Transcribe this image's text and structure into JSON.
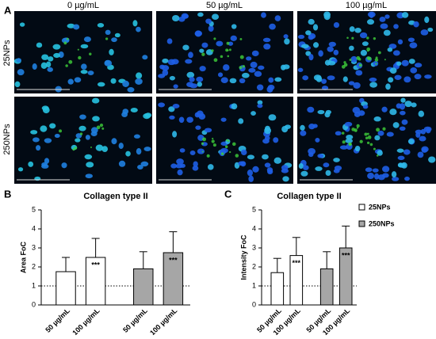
{
  "figure": {
    "panel_labels": [
      "A",
      "B",
      "C"
    ],
    "columns": [
      "0 µg/mL",
      "50 µg/mL",
      "100 µg/mL"
    ],
    "rows": [
      "25NPs",
      "250NPs"
    ]
  },
  "chart_data": [
    {
      "type": "bar",
      "title": "Collagen type II",
      "ylabel": "Area FoC",
      "categories": [
        "50 µg/mL",
        "100 µg/mL",
        "50 µg/mL",
        "100 µg/mL"
      ],
      "values": [
        1.75,
        2.5,
        1.9,
        2.75
      ],
      "errors": [
        0.75,
        1.0,
        0.9,
        1.1
      ],
      "colors": [
        "#ffffff",
        "#ffffff",
        "#a6a6a6",
        "#a6a6a6"
      ],
      "annotations": [
        {
          "index": 1,
          "text": "***"
        },
        {
          "index": 3,
          "text": "***"
        }
      ],
      "reference_line": 1,
      "ylim": [
        0,
        5
      ],
      "yticks": [
        0,
        1,
        2,
        3,
        4,
        5
      ]
    },
    {
      "type": "bar",
      "title": "Collagen type II",
      "ylabel": "Intensity FoC",
      "categories": [
        "50 µg/mL",
        "100 µg/mL",
        "50 µg/mL",
        "100 µg/mL"
      ],
      "values": [
        1.7,
        2.6,
        1.9,
        3.0
      ],
      "errors": [
        0.75,
        0.95,
        0.9,
        1.15
      ],
      "colors": [
        "#ffffff",
        "#ffffff",
        "#a6a6a6",
        "#a6a6a6"
      ],
      "annotations": [
        {
          "index": 1,
          "text": "***"
        },
        {
          "index": 3,
          "text": "***"
        }
      ],
      "reference_line": 1,
      "ylim": [
        0,
        5
      ],
      "yticks": [
        0,
        1,
        2,
        3,
        4,
        5
      ],
      "legend": [
        {
          "name": "25NPs",
          "color": "#ffffff"
        },
        {
          "name": "250NPs",
          "color": "#a6a6a6"
        }
      ]
    }
  ]
}
